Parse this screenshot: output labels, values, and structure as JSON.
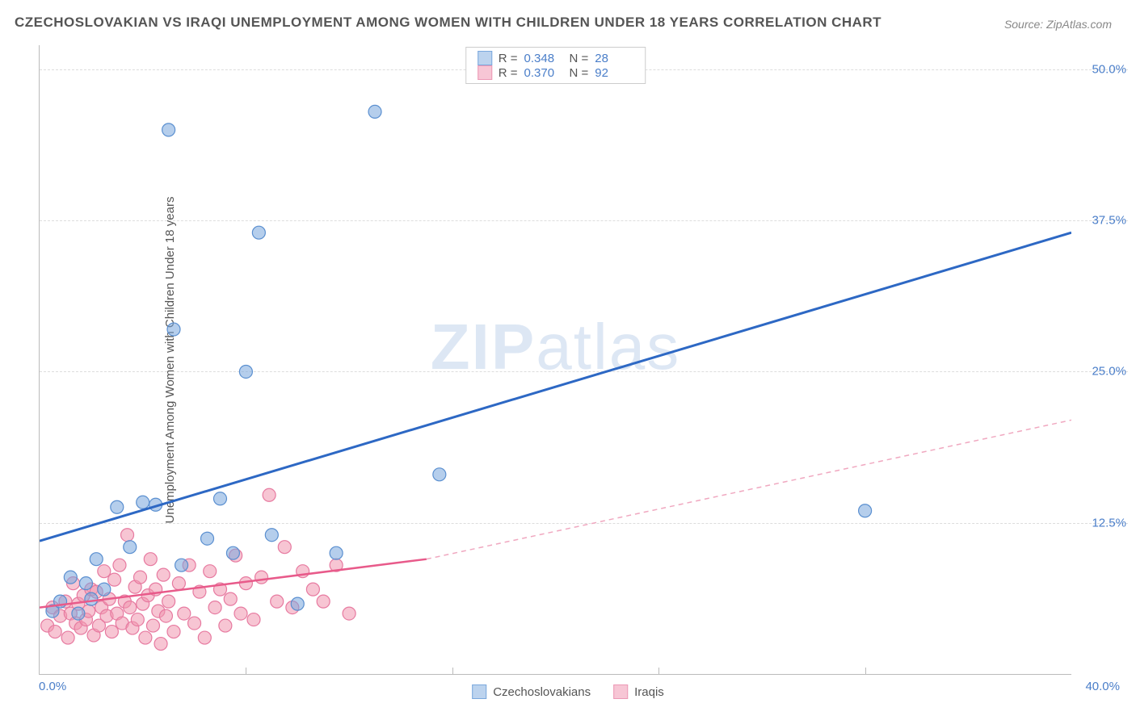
{
  "title": "CZECHOSLOVAKIAN VS IRAQI UNEMPLOYMENT AMONG WOMEN WITH CHILDREN UNDER 18 YEARS CORRELATION CHART",
  "source": "Source: ZipAtlas.com",
  "ylabel": "Unemployment Among Women with Children Under 18 years",
  "watermark_bold": "ZIP",
  "watermark_light": "atlas",
  "chart": {
    "type": "scatter",
    "xlim": [
      0,
      40
    ],
    "ylim": [
      0,
      52
    ],
    "x_tick_labels": {
      "min": "0.0%",
      "max": "40.0%"
    },
    "y_gridlines": [
      12.5,
      25.0,
      37.5,
      50.0
    ],
    "y_tick_labels": [
      "12.5%",
      "25.0%",
      "37.5%",
      "50.0%"
    ],
    "x_gridlines": [
      8,
      16,
      24,
      32
    ],
    "background_color": "#ffffff",
    "grid_color": "#dddddd",
    "axis_color": "#bbbbbb",
    "series": [
      {
        "name": "Czechoslovakians",
        "color_fill": "rgba(120,165,220,0.55)",
        "color_stroke": "#5a8fd0",
        "swatch_fill": "#bcd3ee",
        "swatch_border": "#7aa8dd",
        "marker_radius": 8,
        "R": "0.348",
        "N": "28",
        "trend": {
          "x1": 0,
          "y1": 11.0,
          "x2": 40,
          "y2": 36.5,
          "stroke": "#2d68c4",
          "width": 3,
          "dash": "none"
        },
        "points": [
          [
            0.5,
            5.2
          ],
          [
            0.8,
            6.0
          ],
          [
            1.2,
            8.0
          ],
          [
            1.5,
            5.0
          ],
          [
            1.8,
            7.5
          ],
          [
            2.0,
            6.2
          ],
          [
            2.2,
            9.5
          ],
          [
            2.5,
            7.0
          ],
          [
            3.0,
            13.8
          ],
          [
            3.5,
            10.5
          ],
          [
            4.0,
            14.2
          ],
          [
            4.5,
            14.0
          ],
          [
            5.0,
            45.0
          ],
          [
            5.2,
            28.5
          ],
          [
            5.5,
            9.0
          ],
          [
            6.5,
            11.2
          ],
          [
            7.0,
            14.5
          ],
          [
            7.5,
            10.0
          ],
          [
            8.0,
            25.0
          ],
          [
            8.5,
            36.5
          ],
          [
            9.0,
            11.5
          ],
          [
            10.0,
            5.8
          ],
          [
            11.5,
            10.0
          ],
          [
            13.0,
            46.5
          ],
          [
            15.5,
            16.5
          ],
          [
            32.0,
            13.5
          ]
        ]
      },
      {
        "name": "Iraqis",
        "color_fill": "rgba(240,150,175,0.55)",
        "color_stroke": "#e77aa0",
        "swatch_fill": "#f7c6d5",
        "swatch_border": "#ec98b5",
        "marker_radius": 8,
        "R": "0.370",
        "N": "92",
        "trend": {
          "x1": 0,
          "y1": 5.5,
          "x2": 15,
          "y2": 9.5,
          "stroke": "#e85a8a",
          "width": 2.5,
          "dash": "none"
        },
        "trend_ext": {
          "x1": 15,
          "y1": 9.5,
          "x2": 40,
          "y2": 21.0,
          "stroke": "#f0a8c0",
          "width": 1.5,
          "dash": "6,5"
        },
        "points": [
          [
            0.3,
            4.0
          ],
          [
            0.5,
            5.5
          ],
          [
            0.6,
            3.5
          ],
          [
            0.8,
            4.8
          ],
          [
            1.0,
            6.0
          ],
          [
            1.1,
            3.0
          ],
          [
            1.2,
            5.0
          ],
          [
            1.3,
            7.5
          ],
          [
            1.4,
            4.2
          ],
          [
            1.5,
            5.8
          ],
          [
            1.6,
            3.8
          ],
          [
            1.7,
            6.5
          ],
          [
            1.8,
            4.5
          ],
          [
            1.9,
            5.2
          ],
          [
            2.0,
            7.0
          ],
          [
            2.1,
            3.2
          ],
          [
            2.2,
            6.8
          ],
          [
            2.3,
            4.0
          ],
          [
            2.4,
            5.5
          ],
          [
            2.5,
            8.5
          ],
          [
            2.6,
            4.8
          ],
          [
            2.7,
            6.2
          ],
          [
            2.8,
            3.5
          ],
          [
            2.9,
            7.8
          ],
          [
            3.0,
            5.0
          ],
          [
            3.1,
            9.0
          ],
          [
            3.2,
            4.2
          ],
          [
            3.3,
            6.0
          ],
          [
            3.4,
            11.5
          ],
          [
            3.5,
            5.5
          ],
          [
            3.6,
            3.8
          ],
          [
            3.7,
            7.2
          ],
          [
            3.8,
            4.5
          ],
          [
            3.9,
            8.0
          ],
          [
            4.0,
            5.8
          ],
          [
            4.1,
            3.0
          ],
          [
            4.2,
            6.5
          ],
          [
            4.3,
            9.5
          ],
          [
            4.4,
            4.0
          ],
          [
            4.5,
            7.0
          ],
          [
            4.6,
            5.2
          ],
          [
            4.7,
            2.5
          ],
          [
            4.8,
            8.2
          ],
          [
            4.9,
            4.8
          ],
          [
            5.0,
            6.0
          ],
          [
            5.2,
            3.5
          ],
          [
            5.4,
            7.5
          ],
          [
            5.6,
            5.0
          ],
          [
            5.8,
            9.0
          ],
          [
            6.0,
            4.2
          ],
          [
            6.2,
            6.8
          ],
          [
            6.4,
            3.0
          ],
          [
            6.6,
            8.5
          ],
          [
            6.8,
            5.5
          ],
          [
            7.0,
            7.0
          ],
          [
            7.2,
            4.0
          ],
          [
            7.4,
            6.2
          ],
          [
            7.6,
            9.8
          ],
          [
            7.8,
            5.0
          ],
          [
            8.0,
            7.5
          ],
          [
            8.3,
            4.5
          ],
          [
            8.6,
            8.0
          ],
          [
            8.9,
            14.8
          ],
          [
            9.2,
            6.0
          ],
          [
            9.5,
            10.5
          ],
          [
            9.8,
            5.5
          ],
          [
            10.2,
            8.5
          ],
          [
            10.6,
            7.0
          ],
          [
            11.0,
            6.0
          ],
          [
            11.5,
            9.0
          ],
          [
            12.0,
            5.0
          ]
        ]
      }
    ]
  },
  "legend_bottom": [
    {
      "label": "Czechoslovakians"
    },
    {
      "label": "Iraqis"
    }
  ]
}
